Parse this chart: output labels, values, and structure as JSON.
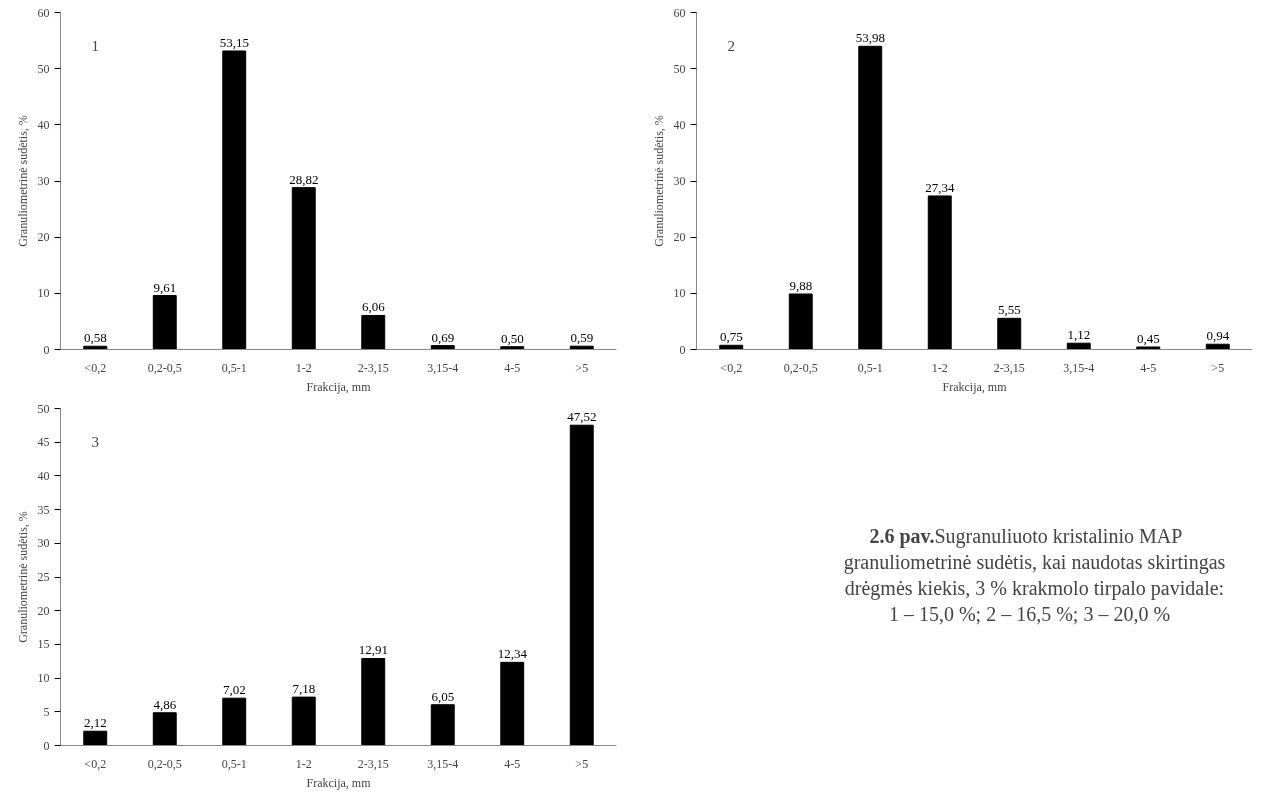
{
  "chart_data": [
    {
      "type": "bar",
      "xlabel": "Frakcija, mm",
      "ylabel": "Granuliometrinė sudėtis, %",
      "annotations": [
        "1"
      ],
      "categories": [
        "<0,2",
        "0,2-0,5",
        "0,5-1",
        "1-2",
        "2-3,15",
        "3,15-4",
        "4-5",
        ">5"
      ],
      "values": [
        0.58,
        9.61,
        53.15,
        28.82,
        6.06,
        0.69,
        0.5,
        0.59
      ],
      "value_labels": [
        "0,58",
        "9,61",
        "53,15",
        "28,82",
        "6,06",
        "0,69",
        "0,50",
        "0,59"
      ],
      "color": "#000000",
      "ylim": [
        0,
        60
      ],
      "yticks": [
        0,
        10,
        20,
        30,
        40,
        50,
        60
      ]
    },
    {
      "type": "bar",
      "xlabel": "Frakcija, mm",
      "ylabel": "Granuliometrinė sudėtis, %",
      "annotations": [
        "2"
      ],
      "categories": [
        "<0,2",
        "0,2-0,5",
        "0,5-1",
        "1-2",
        "2-3,15",
        "3,15-4",
        "4-5",
        ">5"
      ],
      "values": [
        0.75,
        9.88,
        53.98,
        27.34,
        5.55,
        1.12,
        0.45,
        0.94
      ],
      "value_labels": [
        "0,75",
        "9,88",
        "53,98",
        "27,34",
        "5,55",
        "1,12",
        "0,45",
        "0,94"
      ],
      "color": "#000000",
      "ylim": [
        0,
        60
      ],
      "yticks": [
        0,
        10,
        20,
        30,
        40,
        50,
        60
      ]
    },
    {
      "type": "bar",
      "xlabel": "Frakcija, mm",
      "ylabel": "Granuliometrinė sudėtis, %",
      "annotations": [
        "3"
      ],
      "categories": [
        "<0,2",
        "0,2-0,5",
        "0,5-1",
        "1-2",
        "2-3,15",
        "3,15-4",
        "4-5",
        ">5"
      ],
      "values": [
        2.12,
        4.86,
        7.02,
        7.18,
        12.91,
        6.05,
        12.34,
        47.52
      ],
      "value_labels": [
        "2,12",
        "4,86",
        "7,02",
        "7,18",
        "12,91",
        "6,05",
        "12,34",
        "47,52"
      ],
      "color": "#000000",
      "ylim": [
        0,
        50
      ],
      "yticks": [
        0,
        5,
        10,
        15,
        20,
        25,
        30,
        35,
        40,
        45,
        50
      ]
    },
    {
      "type": "other",
      "title": "2.6 pav.",
      "annotations": [
        " Sugranuliuoto kristalinio MAP",
        "granuliometrinė sudėtis, kai naudotas skirtingas",
        "drėgmės kiekis, 3 % krakmolo tirpalo pavidale:",
        "1  –  15,0 %; 2 – 16,5 %; 3 – 20,0 %"
      ]
    }
  ]
}
